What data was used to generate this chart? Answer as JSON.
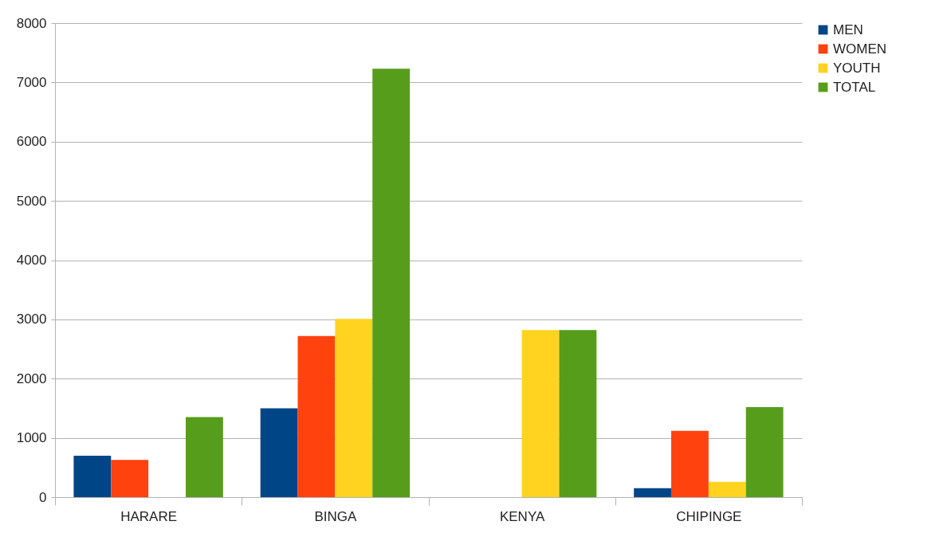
{
  "chart_data": {
    "type": "bar",
    "categories": [
      "HARARE",
      "BINGA",
      "KENYA",
      "CHIPINGE"
    ],
    "series": [
      {
        "name": "MEN",
        "color": "#004586",
        "values": [
          700,
          1500,
          0,
          150
        ]
      },
      {
        "name": "WOMEN",
        "color": "#ff420e",
        "values": [
          630,
          2720,
          0,
          1120
        ]
      },
      {
        "name": "YOUTH",
        "color": "#ffd320",
        "values": [
          0,
          3010,
          2820,
          260
        ]
      },
      {
        "name": "TOTAL",
        "color": "#579d1c",
        "values": [
          1350,
          7230,
          2820,
          1520
        ]
      }
    ],
    "ylim": [
      0,
      8000
    ],
    "yticks": [
      0,
      1000,
      2000,
      3000,
      4000,
      5000,
      6000,
      7000,
      8000
    ],
    "grid": "y",
    "legend": "right"
  }
}
